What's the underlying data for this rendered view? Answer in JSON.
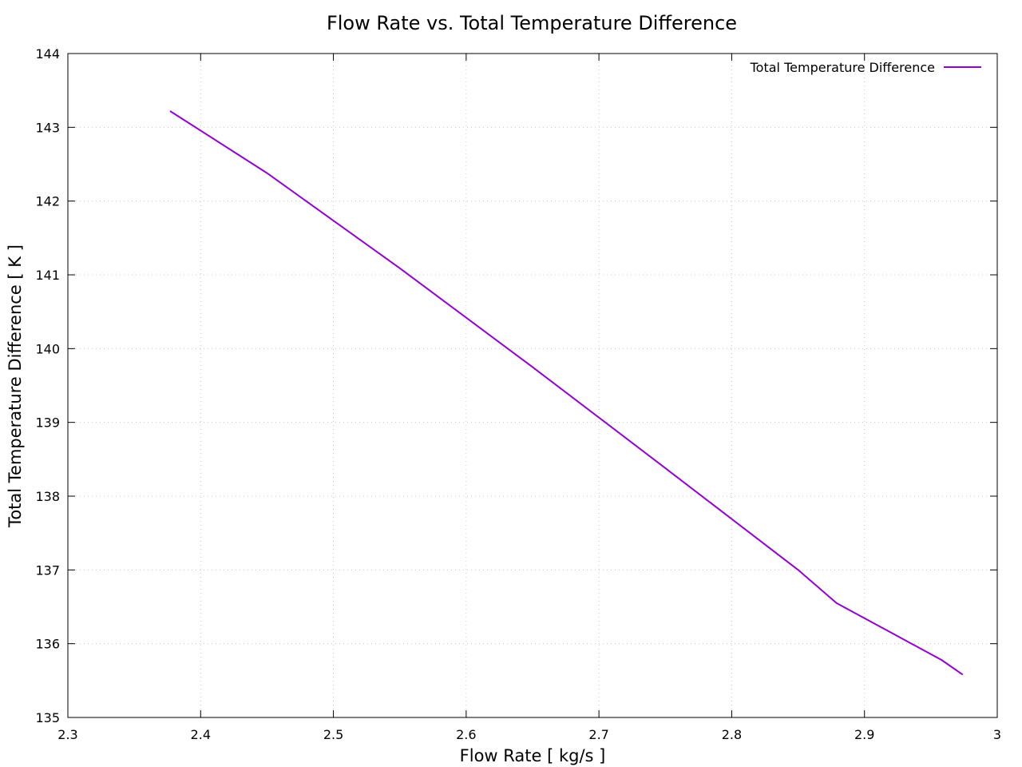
{
  "chart_data": {
    "type": "line",
    "title": "Flow Rate vs. Total Temperature Difference",
    "xlabel": "Flow Rate [ kg/s ]",
    "ylabel": "Total Temperature Difference [ K ]",
    "xlim": [
      2.3,
      3.0
    ],
    "ylim": [
      135,
      144
    ],
    "xticks": [
      2.3,
      2.4,
      2.5,
      2.6,
      2.7,
      2.8,
      2.9,
      3.0
    ],
    "xtick_labels": [
      "2.3",
      "2.4",
      "2.5",
      "2.6",
      "2.7",
      "2.8",
      "2.9",
      "3"
    ],
    "yticks": [
      135,
      136,
      137,
      138,
      139,
      140,
      141,
      142,
      143,
      144
    ],
    "ytick_labels": [
      "135",
      "136",
      "137",
      "138",
      "139",
      "140",
      "141",
      "142",
      "143",
      "144"
    ],
    "grid": true,
    "legend_position": "top-right",
    "series": [
      {
        "name": "Total Temperature Difference",
        "color": "#9400d3",
        "x": [
          2.377,
          2.45,
          2.55,
          2.65,
          2.75,
          2.85,
          2.879,
          2.92,
          2.958,
          2.974
        ],
        "y": [
          143.22,
          142.38,
          141.09,
          139.75,
          138.38,
          137.0,
          136.55,
          136.15,
          135.78,
          135.58
        ]
      }
    ]
  }
}
